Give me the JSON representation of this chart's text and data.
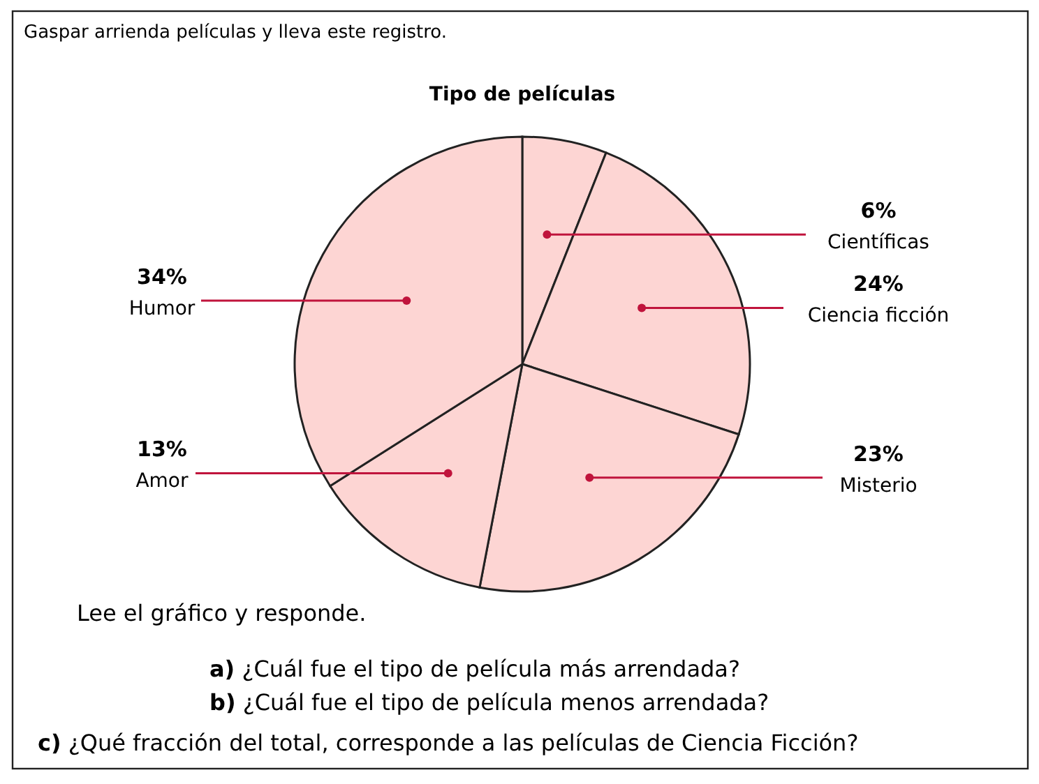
{
  "chart_data": {
    "type": "pie",
    "title": "Tipo de películas",
    "categories": [
      "Científicas",
      "Ciencia ficción",
      "Misterio",
      "Amor",
      "Humor"
    ],
    "values": [
      6,
      24,
      23,
      13,
      34
    ],
    "value_labels": [
      "6%",
      "24%",
      "23%",
      "13%",
      "34%"
    ],
    "colors": [
      "#fdd5d3",
      "#fdd5d3",
      "#fdd5d3",
      "#fdd5d3",
      "#fdd5d3"
    ],
    "annotations": [
      "Gaspar arrienda películas y lleva este registro.",
      "Lee el gráfico y responde.",
      "a) ¿Cuál fue el tipo de película más arrendada?",
      "b) ¿Cuál fue el tipo de película menos arrendada?",
      "c) ¿Qué fracción del total, corresponde a las películas de Ciencia Ficción?"
    ]
  }
}
